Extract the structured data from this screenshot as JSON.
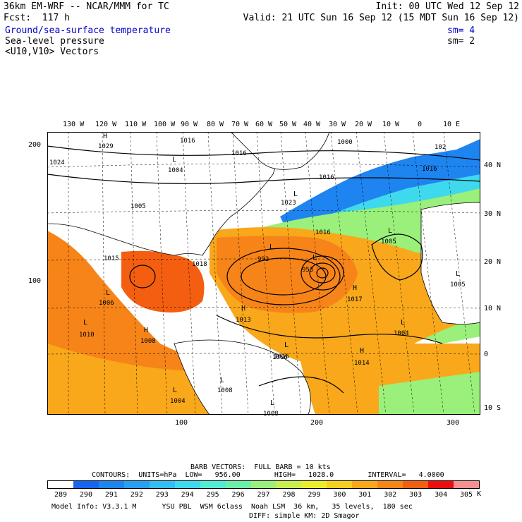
{
  "header": {
    "model_title": "36km EM-WRF -- NCAR/MMM for TC",
    "init": "Init: 00 UTC Wed 12 Sep 12",
    "fcst": "Fcst:  117 h",
    "valid": "Valid: 21 UTC Sun 16 Sep 12 (15 MDT Sun 16 Sep 12)",
    "field1": "Ground/sea-surface temperature",
    "field1_sm": "sm= 4",
    "field2": "Sea-level pressure",
    "field2_sm": "sm= 2",
    "field3": "<U10,V10> Vectors"
  },
  "top_axis": [
    "130 W",
    "120 W",
    "110 W",
    "100 W",
    "90 W",
    "80 W",
    "70 W",
    "60 W",
    "50 W",
    "40 W",
    "30 W",
    "20 W",
    "10 W",
    "0",
    "10 E"
  ],
  "right_axis": [
    "40 N",
    "30 N",
    "20 N",
    "10 N",
    "0",
    "10 S"
  ],
  "left_axis": [
    "200",
    "100"
  ],
  "bottom_axis": [
    "100",
    "200",
    "300"
  ],
  "pressure_labels": [
    "1029",
    "1016",
    "1016",
    "1000",
    "1024",
    "1004",
    "1016",
    "1023",
    "1005",
    "1016",
    "1005",
    "1015",
    "992",
    "953",
    "1018",
    "1006",
    "1017",
    "1013",
    "1016",
    "1010",
    "1008",
    "1016",
    "1014",
    "1004",
    "1008",
    "1004",
    "1005",
    "1008",
    "102",
    "1016"
  ],
  "hl_markers": [
    "H",
    "L",
    "L",
    "L",
    "L",
    "H",
    "L",
    "L",
    "H",
    "H",
    "L",
    "L",
    "L",
    "L",
    "H",
    "L",
    "L",
    "L"
  ],
  "legend": {
    "barb": "BARB VECTORS:  FULL BARB = 10 kts",
    "contours": "CONTOURS:  UNITS=hPa  LOW=   956.00        HIGH=   1028.0        INTERVAL=   4.0000",
    "unit": "K",
    "levels": [
      "289",
      "290",
      "291",
      "292",
      "293",
      "294",
      "295",
      "296",
      "297",
      "298",
      "299",
      "300",
      "301",
      "302",
      "303",
      "304",
      "305"
    ],
    "colors": [
      "#ffffff",
      "#1565ee",
      "#1e84f0",
      "#27a0f2",
      "#32bff4",
      "#3fd9ee",
      "#52ecd4",
      "#6cf0a8",
      "#9af07a",
      "#c8ef52",
      "#ecec2e",
      "#f7cf20",
      "#f8a81a",
      "#f78418",
      "#f45e10",
      "#ec0c0c",
      "#f49090"
    ]
  },
  "model_info": {
    "line1": "Model Info: V3.3.1 M      YSU PBL  WSM 6class  Noah LSM  36 km,   35 levels,  180 sec",
    "line2": "DIFF: simple KM: 2D Smagor"
  }
}
